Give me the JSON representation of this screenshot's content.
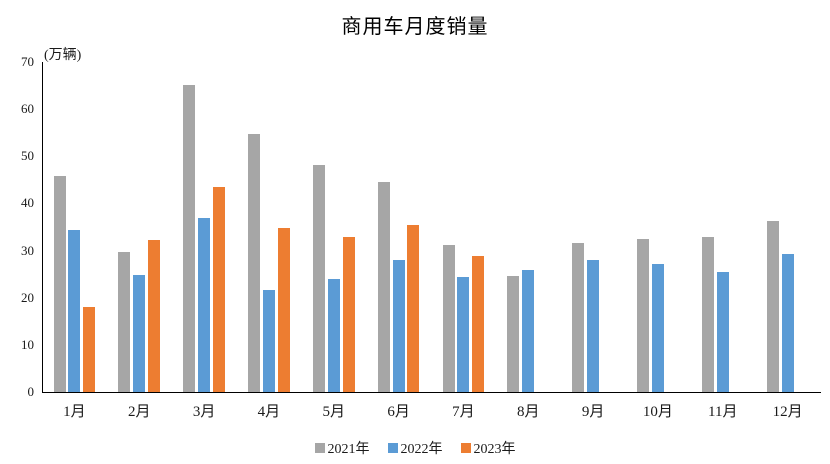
{
  "chart_data": {
    "type": "bar",
    "title": "商用车月度销量",
    "unit_label": "(万辆)",
    "categories": [
      "1月",
      "2月",
      "3月",
      "4月",
      "5月",
      "6月",
      "7月",
      "8月",
      "9月",
      "10月",
      "11月",
      "12月"
    ],
    "series": [
      {
        "name": "2021年",
        "color": "#A6A6A6",
        "values": [
          45.8,
          29.8,
          65.2,
          54.8,
          48.1,
          44.5,
          31.2,
          24.7,
          31.6,
          32.4,
          32.9,
          36.3
        ]
      },
      {
        "name": "2022年",
        "color": "#5B9BD5",
        "values": [
          34.4,
          24.9,
          37.0,
          21.6,
          23.9,
          28.1,
          24.5,
          25.8,
          27.9,
          27.2,
          25.4,
          29.2
        ]
      },
      {
        "name": "2023年",
        "color": "#ED7D31",
        "values": [
          18.0,
          32.2,
          43.5,
          34.8,
          32.9,
          35.5,
          28.8,
          null,
          null,
          null,
          null,
          null
        ]
      }
    ],
    "ylim": [
      0,
      70
    ],
    "yticks": [
      0,
      10,
      20,
      30,
      40,
      50,
      60,
      70
    ],
    "xlabel": "",
    "ylabel": "(万辆)",
    "grid": false,
    "legend_position": "bottom",
    "axis_color": "#000000",
    "text_color": "#1a1a1a",
    "background_color": "#ffffff"
  }
}
